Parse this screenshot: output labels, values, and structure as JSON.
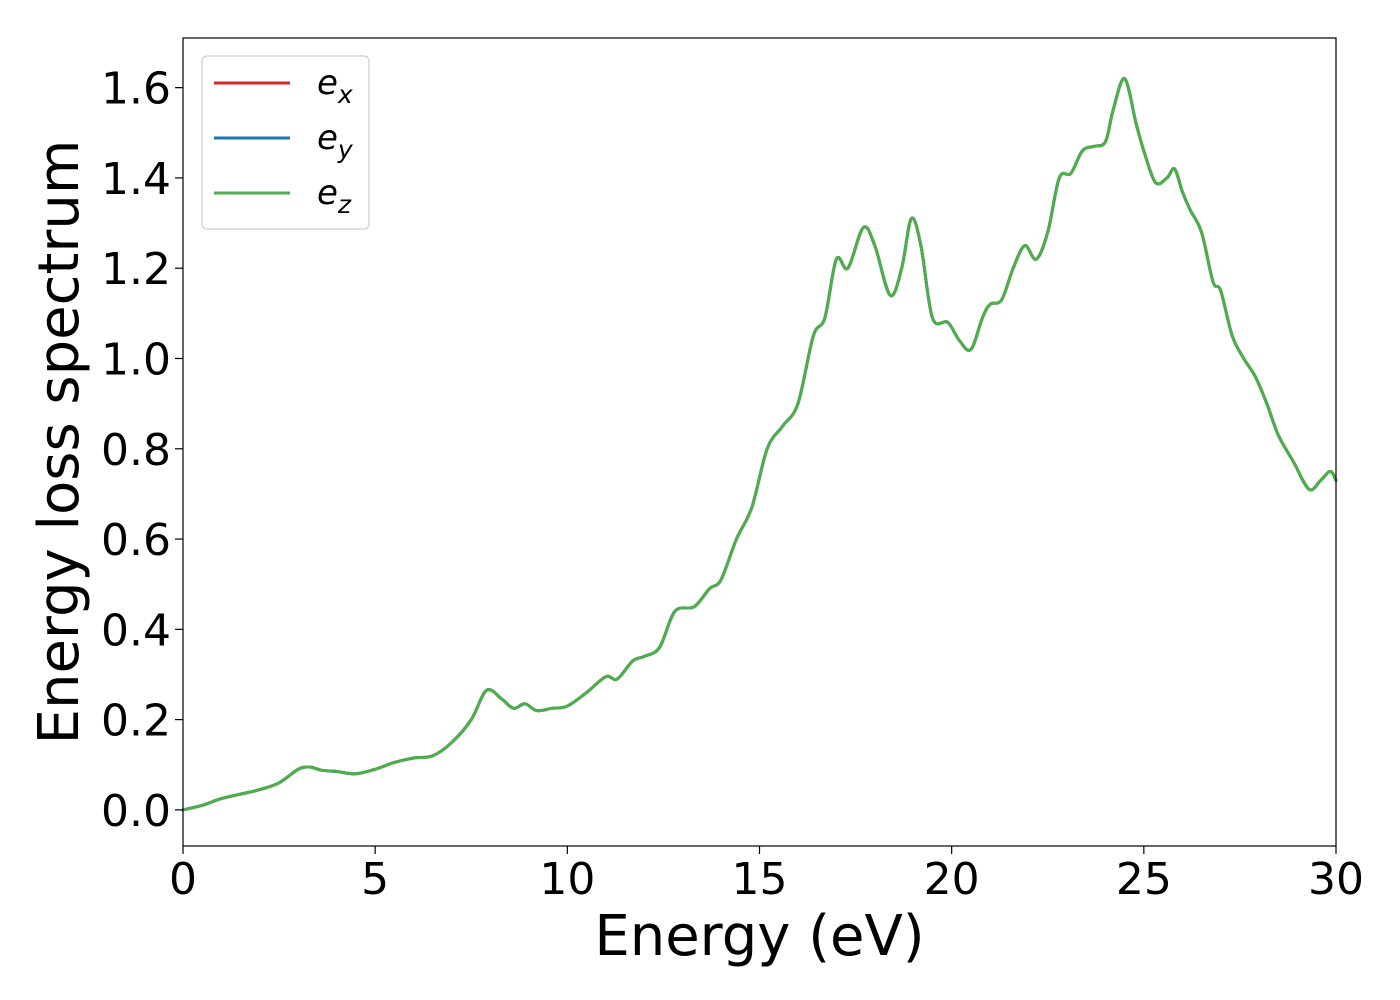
{
  "chart_data": {
    "type": "line",
    "title": "",
    "xlabel": "Energy (eV)",
    "ylabel": "Energy loss spectrum",
    "xlim": [
      0,
      30
    ],
    "ylim": [
      -0.08,
      1.71
    ],
    "xticks": [
      0,
      5,
      10,
      15,
      20,
      25,
      30
    ],
    "xtick_labels": [
      "0",
      "5",
      "10",
      "15",
      "20",
      "25",
      "30"
    ],
    "yticks": [
      0.0,
      0.2,
      0.4,
      0.6,
      0.8,
      1.0,
      1.2,
      1.4,
      1.6
    ],
    "ytick_labels": [
      "0.0",
      "0.2",
      "0.4",
      "0.6",
      "0.8",
      "1.0",
      "1.2",
      "1.4",
      "1.6"
    ],
    "grid": false,
    "legend_position": "top-left",
    "x": [
      0,
      0.5,
      1.0,
      1.5,
      2.0,
      2.5,
      3.0,
      3.3,
      3.6,
      4.0,
      4.5,
      5.0,
      5.5,
      6.0,
      6.5,
      7.0,
      7.5,
      7.9,
      8.3,
      8.6,
      8.9,
      9.2,
      9.6,
      10.0,
      10.5,
      11.0,
      11.3,
      11.7,
      12.0,
      12.4,
      12.8,
      13.3,
      13.7,
      14.0,
      14.4,
      14.8,
      15.2,
      15.6,
      16.0,
      16.4,
      16.7,
      17.0,
      17.3,
      17.7,
      18.0,
      18.4,
      18.7,
      18.95,
      19.2,
      19.5,
      19.9,
      20.2,
      20.5,
      20.8,
      21.0,
      21.3,
      21.6,
      21.9,
      22.2,
      22.5,
      22.8,
      23.1,
      23.4,
      23.7,
      24.0,
      24.2,
      24.5,
      24.8,
      25.0,
      25.3,
      25.6,
      25.8,
      26.0,
      26.2,
      26.5,
      26.8,
      27.0,
      27.3,
      27.6,
      27.9,
      28.2,
      28.5,
      28.9,
      29.3,
      29.6,
      29.85,
      30.0
    ],
    "series": [
      {
        "name": "e_x",
        "color": "#d62728",
        "values": [
          0.0,
          0.01,
          0.025,
          0.035,
          0.045,
          0.06,
          0.09,
          0.095,
          0.088,
          0.085,
          0.08,
          0.09,
          0.105,
          0.115,
          0.12,
          0.15,
          0.2,
          0.265,
          0.245,
          0.225,
          0.235,
          0.22,
          0.225,
          0.23,
          0.26,
          0.295,
          0.29,
          0.33,
          0.34,
          0.36,
          0.44,
          0.45,
          0.49,
          0.51,
          0.6,
          0.67,
          0.8,
          0.85,
          0.9,
          1.05,
          1.09,
          1.22,
          1.2,
          1.29,
          1.25,
          1.14,
          1.2,
          1.31,
          1.25,
          1.09,
          1.08,
          1.04,
          1.02,
          1.09,
          1.12,
          1.13,
          1.2,
          1.25,
          1.22,
          1.28,
          1.4,
          1.41,
          1.46,
          1.47,
          1.48,
          1.55,
          1.62,
          1.52,
          1.46,
          1.39,
          1.4,
          1.42,
          1.37,
          1.33,
          1.28,
          1.17,
          1.15,
          1.05,
          1.0,
          0.96,
          0.9,
          0.83,
          0.77,
          0.71,
          0.73,
          0.75,
          0.73
        ]
      },
      {
        "name": "e_y",
        "color": "#1f77b4",
        "values": [
          0.0,
          0.01,
          0.025,
          0.035,
          0.045,
          0.06,
          0.09,
          0.095,
          0.088,
          0.085,
          0.08,
          0.09,
          0.105,
          0.115,
          0.12,
          0.15,
          0.2,
          0.265,
          0.245,
          0.225,
          0.235,
          0.22,
          0.225,
          0.23,
          0.26,
          0.295,
          0.29,
          0.33,
          0.34,
          0.36,
          0.44,
          0.45,
          0.49,
          0.51,
          0.6,
          0.67,
          0.8,
          0.85,
          0.9,
          1.05,
          1.09,
          1.22,
          1.2,
          1.29,
          1.25,
          1.14,
          1.2,
          1.31,
          1.25,
          1.09,
          1.08,
          1.04,
          1.02,
          1.09,
          1.12,
          1.13,
          1.2,
          1.25,
          1.22,
          1.28,
          1.4,
          1.41,
          1.46,
          1.47,
          1.48,
          1.55,
          1.62,
          1.52,
          1.46,
          1.39,
          1.4,
          1.42,
          1.37,
          1.33,
          1.28,
          1.17,
          1.15,
          1.05,
          1.0,
          0.96,
          0.9,
          0.83,
          0.77,
          0.71,
          0.73,
          0.75,
          0.73
        ]
      },
      {
        "name": "e_z",
        "color": "#4daf4a",
        "values": [
          0.0,
          0.01,
          0.025,
          0.035,
          0.045,
          0.06,
          0.09,
          0.095,
          0.088,
          0.085,
          0.08,
          0.09,
          0.105,
          0.115,
          0.12,
          0.15,
          0.2,
          0.265,
          0.245,
          0.225,
          0.235,
          0.22,
          0.225,
          0.23,
          0.26,
          0.295,
          0.29,
          0.33,
          0.34,
          0.36,
          0.44,
          0.45,
          0.49,
          0.51,
          0.6,
          0.67,
          0.8,
          0.85,
          0.9,
          1.05,
          1.09,
          1.22,
          1.2,
          1.29,
          1.25,
          1.14,
          1.2,
          1.31,
          1.25,
          1.09,
          1.08,
          1.04,
          1.02,
          1.09,
          1.12,
          1.13,
          1.2,
          1.25,
          1.22,
          1.28,
          1.4,
          1.41,
          1.46,
          1.47,
          1.48,
          1.55,
          1.62,
          1.52,
          1.46,
          1.39,
          1.4,
          1.42,
          1.37,
          1.33,
          1.28,
          1.17,
          1.15,
          1.05,
          1.0,
          0.96,
          0.9,
          0.83,
          0.77,
          0.71,
          0.73,
          0.75,
          0.73
        ]
      }
    ],
    "legend": [
      {
        "base": "e",
        "sub": "x",
        "color": "#d62728"
      },
      {
        "base": "e",
        "sub": "y",
        "color": "#1f77b4"
      },
      {
        "base": "e",
        "sub": "z",
        "color": "#4daf4a"
      }
    ]
  }
}
